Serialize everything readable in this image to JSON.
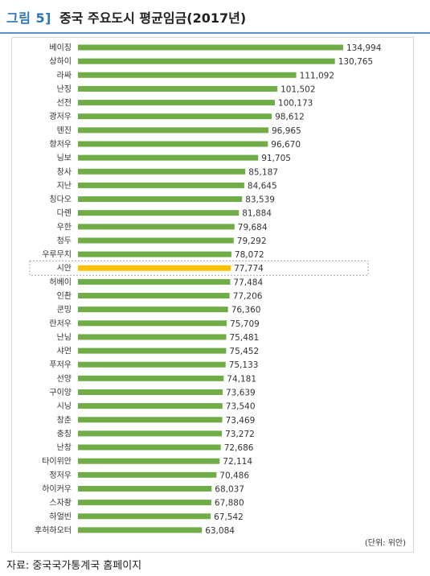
{
  "figure": {
    "label": "그림 5]",
    "title": "중국 주요도시 평균임금(2017년)"
  },
  "unit_note": "(단위: 위안)",
  "source": "자료: 중국국가통계국 홈페이지",
  "colors": {
    "bar": "#70ad47",
    "highlight_bar": "#ffc000",
    "accent": "#2f74b5"
  },
  "chart_data": {
    "type": "bar",
    "orientation": "horizontal",
    "highlight": "시안",
    "categories": [
      "베이징",
      "상하이",
      "라싸",
      "난징",
      "선전",
      "광저우",
      "톈진",
      "항저우",
      "닝보",
      "창사",
      "지난",
      "칭다오",
      "다롄",
      "우한",
      "청두",
      "우루무치",
      "시안",
      "허베이",
      "인촨",
      "쿤밍",
      "란저우",
      "난닝",
      "샤먼",
      "푸저우",
      "선양",
      "구이양",
      "시닝",
      "창춘",
      "충칭",
      "난창",
      "타이위안",
      "정저우",
      "하이커우",
      "스자좡",
      "하얼빈",
      "후허하오터"
    ],
    "values": [
      134994,
      130765,
      111092,
      101502,
      100173,
      98612,
      96965,
      96670,
      91705,
      85187,
      84645,
      83539,
      81884,
      79684,
      79292,
      78072,
      77774,
      77484,
      77206,
      76360,
      75709,
      75481,
      75452,
      75133,
      74181,
      73639,
      73540,
      73469,
      73272,
      72686,
      72114,
      70486,
      68037,
      67880,
      67542,
      63084
    ],
    "value_labels": [
      "134,994",
      "130,765",
      "111,092",
      "101,502",
      "100,173",
      "98,612",
      "96,965",
      "96,670",
      "91,705",
      "85,187",
      "84,645",
      "83,539",
      "81,884",
      "79,684",
      "79,292",
      "78,072",
      "77,774",
      "77,484",
      "77,206",
      "76,360",
      "75,709",
      "75,481",
      "75,452",
      "75,133",
      "74,181",
      "73,639",
      "73,540",
      "73,469",
      "73,272",
      "72,686",
      "72,114",
      "70,486",
      "68,037",
      "67,880",
      "67,542",
      "63,084"
    ],
    "xlim": [
      0,
      140000
    ],
    "grid": false,
    "legend": "none"
  }
}
